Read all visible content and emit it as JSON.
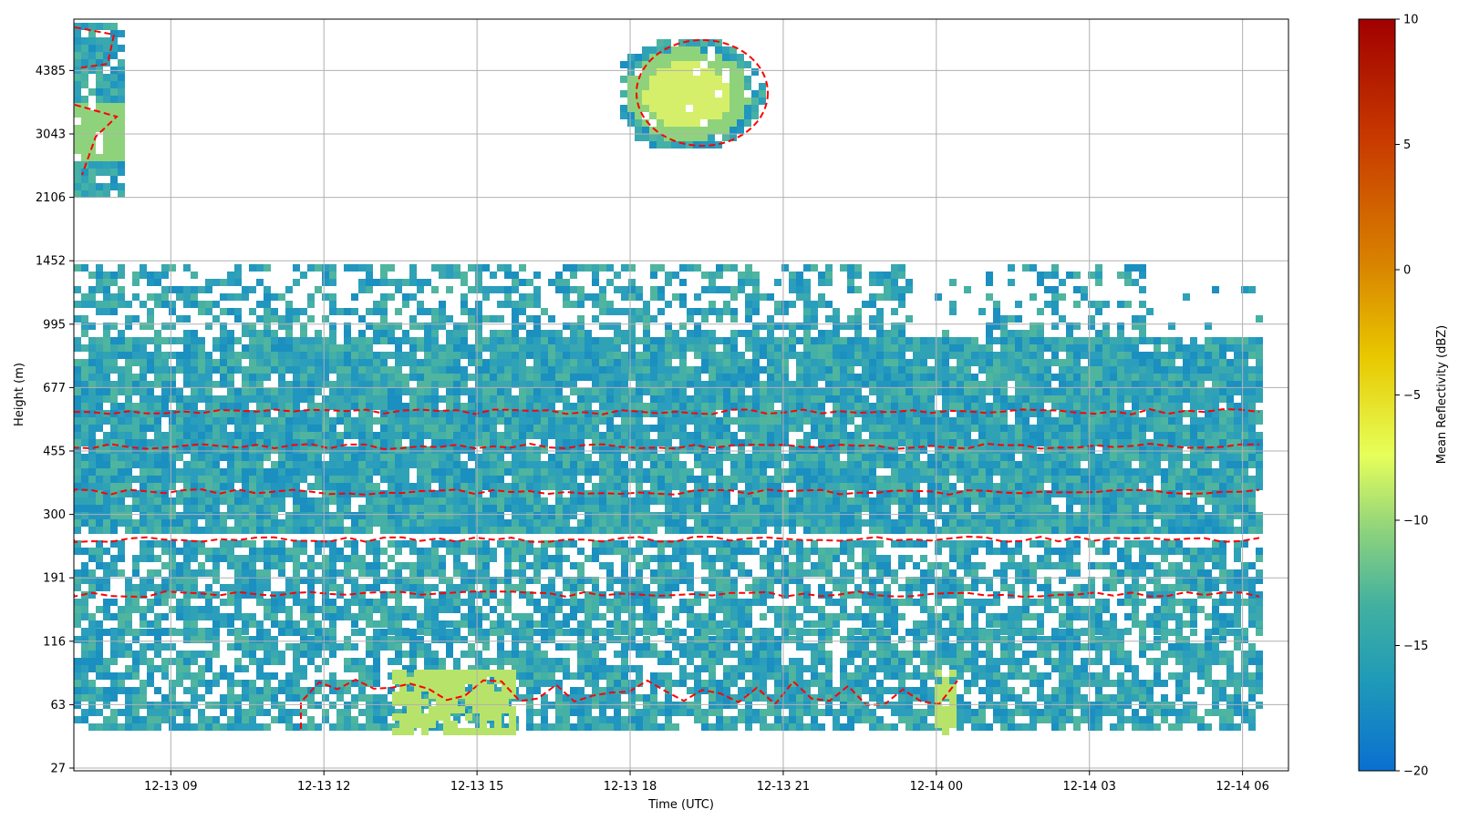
{
  "chart_data": {
    "type": "heatmap",
    "title": "",
    "xlabel": "Time (UTC)",
    "ylabel": "Height (m)",
    "x_ticks": [
      "12-13 09",
      "12-13 12",
      "12-13 15",
      "12-13 18",
      "12-13 21",
      "12-14 00",
      "12-14 03",
      "12-14 06"
    ],
    "x_tick_hours": [
      9,
      12,
      15,
      18,
      21,
      24,
      27,
      30
    ],
    "xlim_hours": [
      7.1,
      30.9
    ],
    "y_ticks": [
      "27",
      "63",
      "116",
      "191",
      "300",
      "455",
      "677",
      "995",
      "1452",
      "2106",
      "3043",
      "4385"
    ],
    "colorbar": {
      "label": "Mean Reflectivity (dBZ)",
      "range": [
        -20,
        10
      ],
      "ticks": [
        "10",
        "5",
        "0",
        "−5",
        "−10",
        "−15",
        "−20"
      ],
      "tick_values": [
        10,
        5,
        0,
        -5,
        -10,
        -15,
        -20
      ],
      "colormap": [
        "#0a6fd0",
        "#1f9ab8",
        "#42b0a0",
        "#8ed37c",
        "#e6ff5a",
        "#e8c800",
        "#d88000",
        "#c83a00",
        "#a00000"
      ]
    },
    "grid": true,
    "contour": {
      "color": "#ff0000",
      "style": "dashed"
    }
  }
}
